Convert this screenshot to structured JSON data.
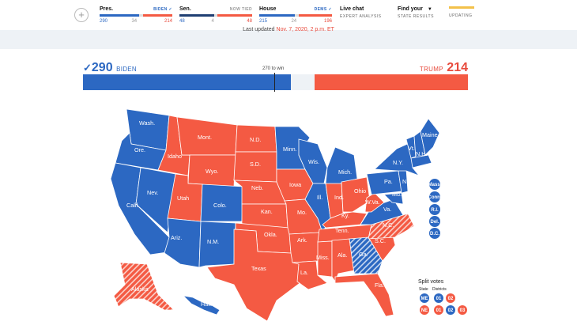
{
  "ticker": {
    "pres": {
      "label": "Pres.",
      "leader": "BIDEN ✓",
      "dem": "290",
      "mid": "34",
      "rep": "214",
      "dem_share": 0.539,
      "mid_share": 0.063,
      "rep_share": 0.398
    },
    "senate": {
      "label": "Sen.",
      "leader": "NOW TIED",
      "dem": "48",
      "mid": "4",
      "rep": "48",
      "dem_share": 0.48,
      "mid_share": 0.04,
      "rep_share": 0.48
    },
    "house": {
      "label": "House",
      "leader": "DEMS ✓",
      "dem": "215",
      "mid": "24",
      "rep": "196",
      "dem_share": 0.494,
      "mid_share": 0.055,
      "rep_share": 0.451
    },
    "live_chat": {
      "label": "Live chat",
      "sub": "Expert analysis"
    },
    "find": {
      "label": "Find your",
      "sub": "State results"
    },
    "status": "UPDATING"
  },
  "last_updated": {
    "prefix": "Last updated ",
    "value": "Nov. 7, 2020, 2 p.m. ET"
  },
  "totals": {
    "dem_count": "290",
    "dem_name": "BIDEN",
    "rep_count": "214",
    "rep_name": "TRUMP",
    "needed": "270 to win",
    "dem_ev": 290,
    "rep_ev": 214,
    "total_ev": 538
  },
  "colors": {
    "dem": "#2c68c2",
    "rep": "#f45a43",
    "undecided": "#eef2f6"
  },
  "states": [
    {
      "abbr": "Wash.",
      "winner": "dem"
    },
    {
      "abbr": "Ore.",
      "winner": "dem"
    },
    {
      "abbr": "Calif.",
      "winner": "dem"
    },
    {
      "abbr": "Nev.",
      "winner": "dem"
    },
    {
      "abbr": "Idaho",
      "winner": "rep"
    },
    {
      "abbr": "Mont.",
      "winner": "rep"
    },
    {
      "abbr": "Wyo.",
      "winner": "rep"
    },
    {
      "abbr": "Utah",
      "winner": "rep"
    },
    {
      "abbr": "Ariz.",
      "winner": "dem"
    },
    {
      "abbr": "Colo.",
      "winner": "dem"
    },
    {
      "abbr": "N.M.",
      "winner": "dem"
    },
    {
      "abbr": "N.D.",
      "winner": "rep"
    },
    {
      "abbr": "S.D.",
      "winner": "rep"
    },
    {
      "abbr": "Neb.",
      "winner": "rep"
    },
    {
      "abbr": "Kan.",
      "winner": "rep"
    },
    {
      "abbr": "Okla.",
      "winner": "rep"
    },
    {
      "abbr": "Texas",
      "winner": "rep"
    },
    {
      "abbr": "Minn.",
      "winner": "dem"
    },
    {
      "abbr": "Iowa",
      "winner": "rep"
    },
    {
      "abbr": "Mo.",
      "winner": "rep"
    },
    {
      "abbr": "Ark.",
      "winner": "rep"
    },
    {
      "abbr": "La.",
      "winner": "rep"
    },
    {
      "abbr": "Wis.",
      "winner": "dem"
    },
    {
      "abbr": "Ill.",
      "winner": "dem"
    },
    {
      "abbr": "Mich.",
      "winner": "dem"
    },
    {
      "abbr": "Ind.",
      "winner": "rep"
    },
    {
      "abbr": "Ohio",
      "winner": "rep"
    },
    {
      "abbr": "Ky.",
      "winner": "rep"
    },
    {
      "abbr": "Tenn.",
      "winner": "rep"
    },
    {
      "abbr": "Miss.",
      "winner": "rep"
    },
    {
      "abbr": "Ala.",
      "winner": "rep"
    },
    {
      "abbr": "Ga.",
      "winner": "dem-leaning"
    },
    {
      "abbr": "Fla.",
      "winner": "rep"
    },
    {
      "abbr": "S.C.",
      "winner": "rep"
    },
    {
      "abbr": "N.C.",
      "winner": "rep-leaning"
    },
    {
      "abbr": "Va.",
      "winner": "dem"
    },
    {
      "abbr": "W.Va.",
      "winner": "rep"
    },
    {
      "abbr": "Pa.",
      "winner": "dem"
    },
    {
      "abbr": "N.Y.",
      "winner": "dem"
    },
    {
      "abbr": "Vt.",
      "winner": "dem"
    },
    {
      "abbr": "N.H.",
      "winner": "dem"
    },
    {
      "abbr": "Maine",
      "winner": "dem"
    },
    {
      "abbr": "Md.",
      "winner": "dem"
    },
    {
      "abbr": "N.J.",
      "winner": "dem"
    },
    {
      "abbr": "Alaska",
      "winner": "rep-leaning"
    },
    {
      "abbr": "Hawaii",
      "winner": "dem"
    }
  ],
  "small_states": [
    "Mass.",
    "Conn.",
    "R.I.",
    "Del.",
    "D.C."
  ],
  "split_votes": {
    "title": "Split votes",
    "state_label": "State",
    "districts_label": "Districts",
    "row1": [
      "ME",
      "01",
      "02"
    ],
    "row2": [
      "NE",
      "01",
      "02",
      "03"
    ]
  }
}
